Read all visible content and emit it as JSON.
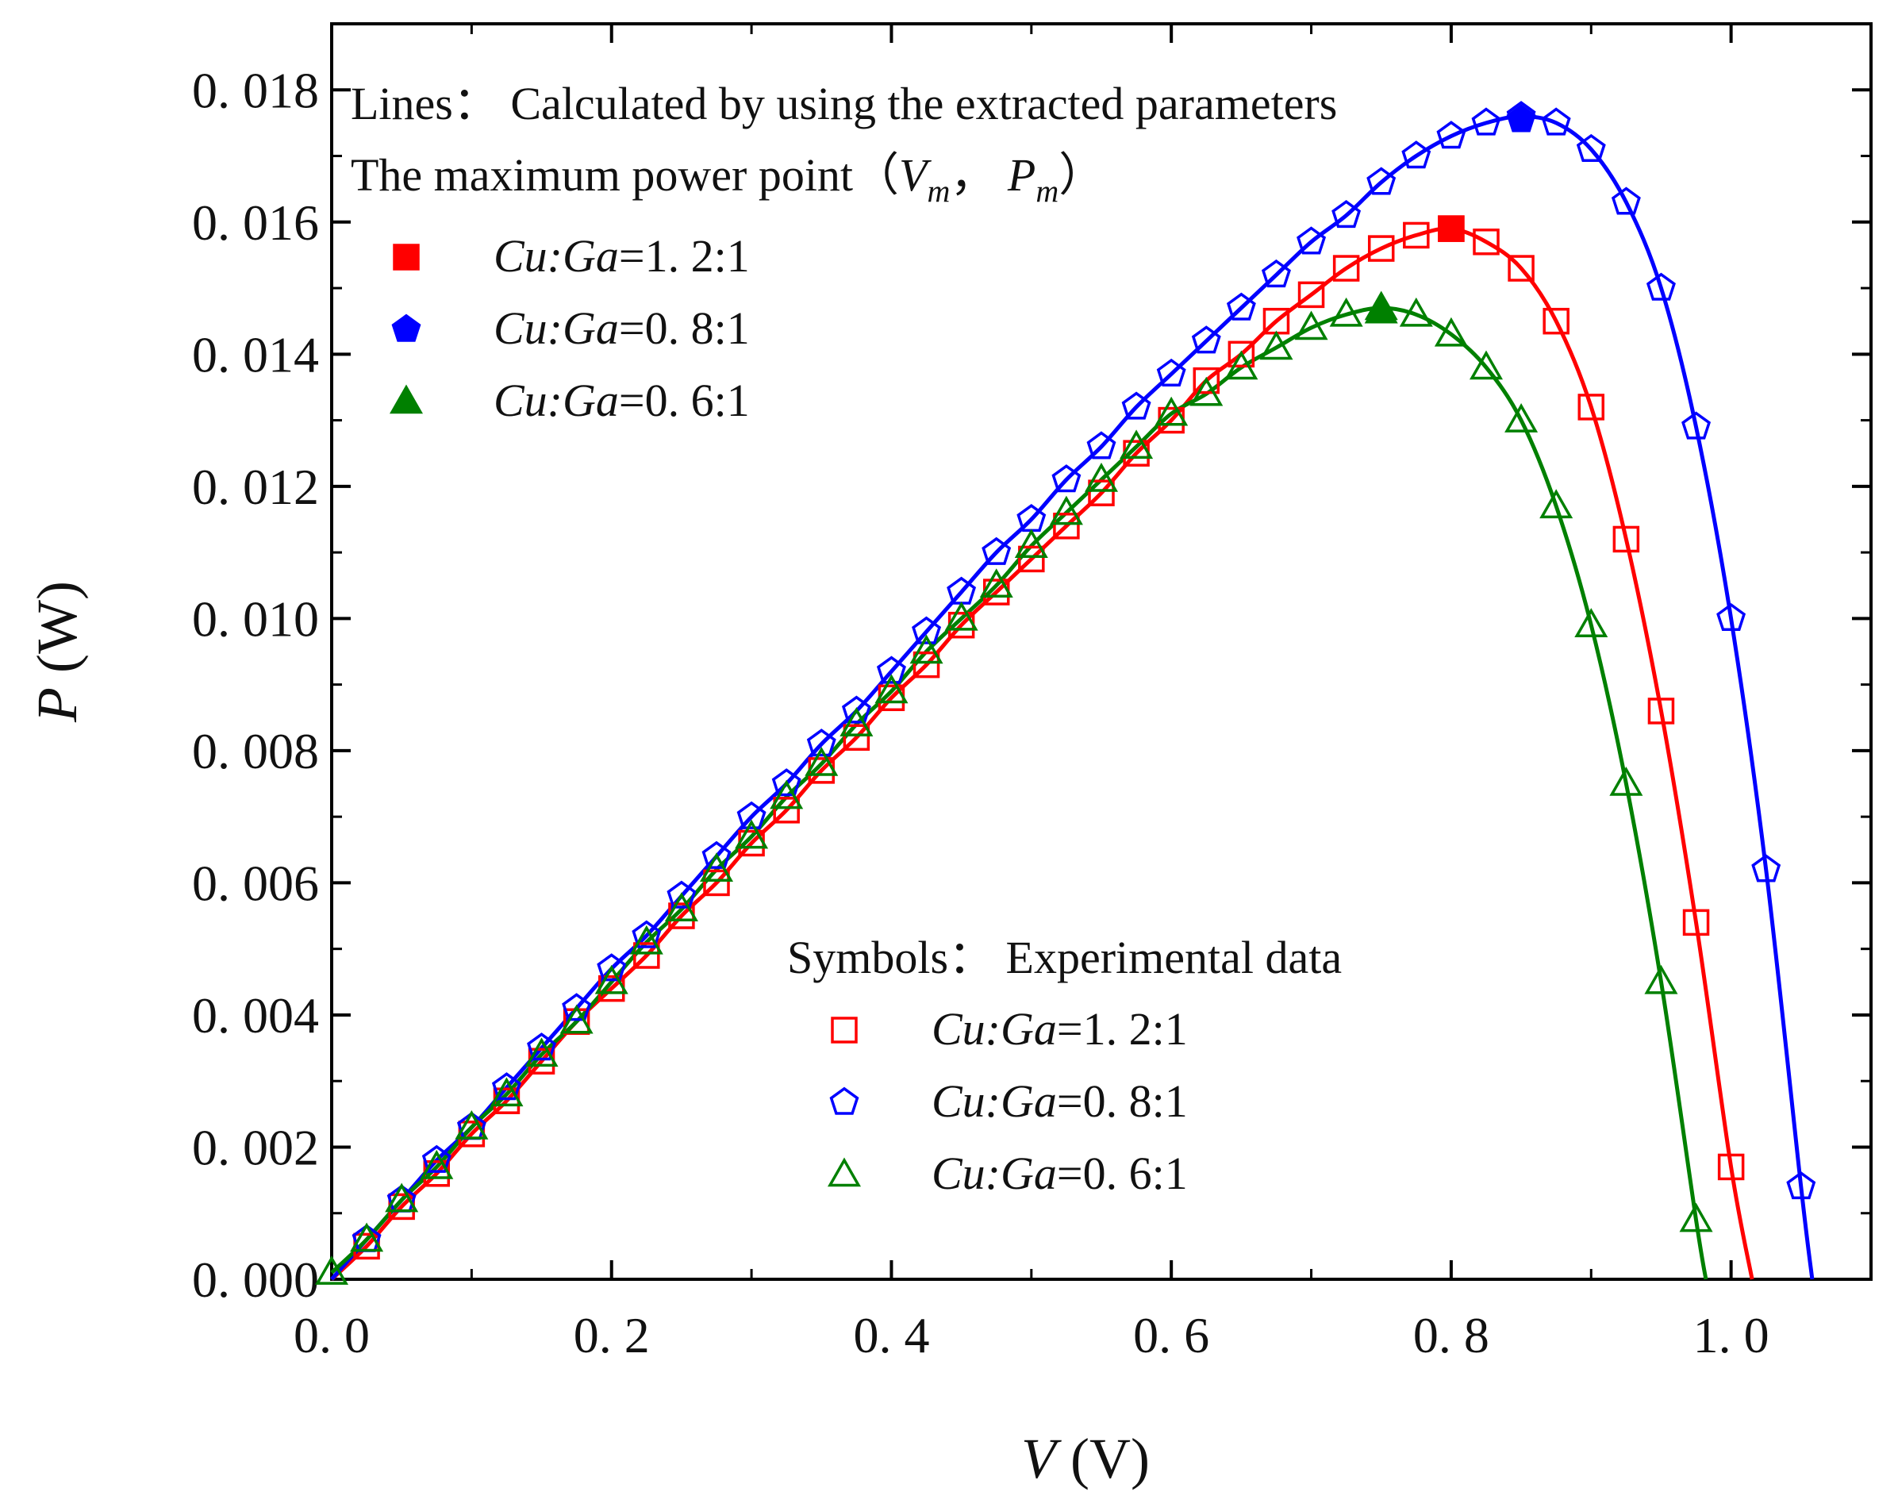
{
  "chart_data": {
    "type": "scatter",
    "xlabel": {
      "var": "V",
      "unit": " (V)"
    },
    "ylabel": {
      "var": "P",
      "unit": " (W)"
    },
    "xlim": [
      0.0,
      1.1
    ],
    "ylim": [
      0.0,
      0.019
    ],
    "xticks": [
      0.0,
      0.2,
      0.4,
      0.6,
      0.8,
      1.0
    ],
    "xtick_labels": [
      "0. 0",
      "0. 2",
      "0. 4",
      "0. 6",
      "0. 8",
      "1. 0"
    ],
    "yticks": [
      0.0,
      0.002,
      0.004,
      0.006,
      0.008,
      0.01,
      0.012,
      0.014,
      0.016,
      0.018
    ],
    "ytick_labels": [
      "0. 000",
      "0. 002",
      "0. 004",
      "0. 006",
      "0. 008",
      "0. 010",
      "0. 012",
      "0. 014",
      "0. 016",
      "0. 018"
    ],
    "grid": false,
    "legend_lines": {
      "position": "top-left",
      "title": "Lines： Calculated by using the extracted parameters",
      "subtitle": "The maximum power point（V_m， P_m）",
      "subtitle_parts": [
        "The maximum power point（",
        "V",
        "m",
        "， ",
        "P",
        "m",
        "）"
      ]
    },
    "legend_symbols": {
      "position": "bottom-center",
      "title": "Symbols： Experimental data"
    },
    "label_prefix": "Cu:Ga",
    "series": [
      {
        "name": "Cu:Ga=1. 2:1",
        "label_value": "=1. 2:1",
        "color": "#ff0000",
        "marker": "square",
        "voc": 1.015,
        "max_power_point": {
          "V": 0.8,
          "P": 0.0159
        },
        "x": [
          0.025,
          0.05,
          0.075,
          0.1,
          0.125,
          0.15,
          0.175,
          0.2,
          0.225,
          0.25,
          0.275,
          0.3,
          0.325,
          0.35,
          0.375,
          0.4,
          0.425,
          0.45,
          0.475,
          0.5,
          0.525,
          0.55,
          0.575,
          0.6,
          0.625,
          0.65,
          0.675,
          0.7,
          0.725,
          0.75,
          0.775,
          0.8,
          0.825,
          0.85,
          0.875,
          0.9,
          0.925,
          0.95,
          0.975,
          1.0
        ],
        "y": [
          0.0005,
          0.0011,
          0.0016,
          0.0022,
          0.0027,
          0.0033,
          0.0039,
          0.0044,
          0.0049,
          0.0055,
          0.006,
          0.0066,
          0.0071,
          0.0077,
          0.0082,
          0.0088,
          0.0093,
          0.0099,
          0.0104,
          0.0109,
          0.0114,
          0.0119,
          0.0125,
          0.013,
          0.0136,
          0.014,
          0.0145,
          0.0149,
          0.0153,
          0.0156,
          0.0158,
          0.0159,
          0.0157,
          0.0153,
          0.0145,
          0.0132,
          0.0112,
          0.0086,
          0.0054,
          0.0017
        ]
      },
      {
        "name": "Cu:Ga=0. 8:1",
        "label_value": "=0. 8:1",
        "color": "#0000ff",
        "marker": "pentagon",
        "voc": 1.058,
        "max_power_point": {
          "V": 0.85,
          "P": 0.01755
        },
        "x": [
          0.025,
          0.05,
          0.075,
          0.1,
          0.125,
          0.15,
          0.175,
          0.2,
          0.225,
          0.25,
          0.275,
          0.3,
          0.325,
          0.35,
          0.375,
          0.4,
          0.425,
          0.45,
          0.475,
          0.5,
          0.525,
          0.55,
          0.575,
          0.6,
          0.625,
          0.65,
          0.675,
          0.7,
          0.725,
          0.75,
          0.775,
          0.8,
          0.825,
          0.85,
          0.875,
          0.9,
          0.925,
          0.95,
          0.975,
          1.0,
          1.025,
          1.05
        ],
        "y": [
          0.0006,
          0.0012,
          0.0018,
          0.0023,
          0.0029,
          0.0035,
          0.0041,
          0.0047,
          0.0052,
          0.0058,
          0.0064,
          0.007,
          0.0075,
          0.0081,
          0.0086,
          0.0092,
          0.0098,
          0.0104,
          0.011,
          0.0115,
          0.0121,
          0.0126,
          0.0132,
          0.0137,
          0.0142,
          0.0147,
          0.0152,
          0.0157,
          0.0161,
          0.0166,
          0.017,
          0.0173,
          0.0175,
          0.0176,
          0.0175,
          0.0171,
          0.0163,
          0.015,
          0.0129,
          0.01,
          0.0062,
          0.0014
        ]
      },
      {
        "name": "Cu:Ga=0. 6:1",
        "label_value": "=0. 6:1",
        "color": "#008000",
        "marker": "triangle",
        "voc": 0.982,
        "max_power_point": {
          "V": 0.75,
          "P": 0.01465
        },
        "x": [
          0.0,
          0.025,
          0.05,
          0.075,
          0.1,
          0.125,
          0.15,
          0.175,
          0.2,
          0.225,
          0.25,
          0.275,
          0.3,
          0.325,
          0.35,
          0.375,
          0.4,
          0.425,
          0.45,
          0.475,
          0.5,
          0.525,
          0.55,
          0.575,
          0.6,
          0.625,
          0.65,
          0.675,
          0.7,
          0.725,
          0.75,
          0.775,
          0.8,
          0.825,
          0.85,
          0.875,
          0.9,
          0.925,
          0.95,
          0.975
        ],
        "y": [
          0.0001,
          0.0006,
          0.0012,
          0.0017,
          0.0023,
          0.0028,
          0.0034,
          0.0039,
          0.0045,
          0.0051,
          0.0056,
          0.0062,
          0.0067,
          0.0073,
          0.0078,
          0.0084,
          0.0089,
          0.0095,
          0.01,
          0.0105,
          0.0111,
          0.0116,
          0.0121,
          0.0126,
          0.0131,
          0.0134,
          0.0138,
          0.0141,
          0.0144,
          0.0146,
          0.0147,
          0.0146,
          0.0143,
          0.0138,
          0.013,
          0.0117,
          0.0099,
          0.0075,
          0.0045,
          0.0009
        ]
      }
    ]
  }
}
